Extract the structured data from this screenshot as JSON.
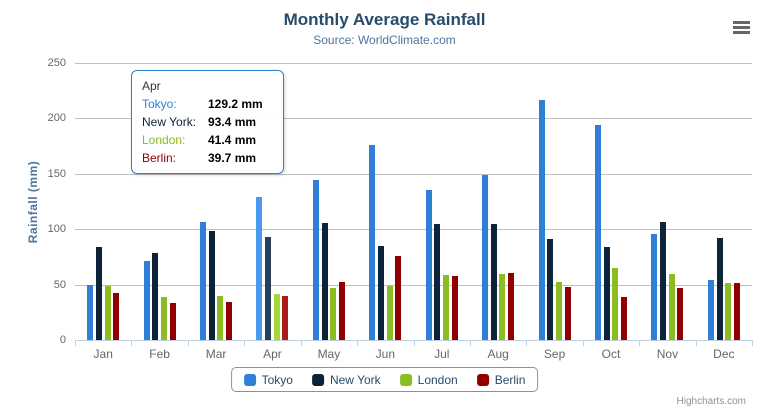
{
  "chart_data": {
    "type": "bar",
    "title": "Monthly Average Rainfall",
    "subtitle": "Source: WorldClimate.com",
    "xlabel": "",
    "ylabel": "Rainfall (mm)",
    "ylim": [
      0,
      250
    ],
    "yticks": [
      0,
      50,
      100,
      150,
      200,
      250
    ],
    "grid": true,
    "legend_position": "bottom",
    "categories": [
      "Jan",
      "Feb",
      "Mar",
      "Apr",
      "May",
      "Jun",
      "Jul",
      "Aug",
      "Sep",
      "Oct",
      "Nov",
      "Dec"
    ],
    "series": [
      {
        "name": "Tokyo",
        "color": "#2f7ed8",
        "hover_color": "#4a9af2",
        "values": [
          49.9,
          71.5,
          106.4,
          129.2,
          144.0,
          176.0,
          135.6,
          148.5,
          216.4,
          194.1,
          95.6,
          54.4
        ]
      },
      {
        "name": "New York",
        "color": "#0d233a",
        "hover_color": "#28405c",
        "values": [
          83.6,
          78.8,
          98.5,
          93.4,
          106.0,
          84.5,
          105.0,
          104.3,
          91.2,
          83.5,
          106.6,
          92.3
        ]
      },
      {
        "name": "London",
        "color": "#8bbc21",
        "hover_color": "#a4d739",
        "values": [
          48.9,
          38.8,
          39.3,
          41.4,
          47.0,
          48.3,
          59.0,
          59.6,
          52.4,
          65.2,
          59.3,
          51.2
        ]
      },
      {
        "name": "Berlin",
        "color": "#910000",
        "hover_color": "#ab1a1a",
        "values": [
          42.4,
          33.2,
          34.5,
          39.7,
          52.6,
          75.5,
          57.4,
          60.4,
          47.6,
          39.1,
          46.8,
          51.1
        ]
      }
    ],
    "hovered_category": "Apr"
  },
  "tooltip": {
    "header": "Apr",
    "rows": [
      {
        "label": "Tokyo:",
        "value": "129.2 mm",
        "color": "#2f7ed8"
      },
      {
        "label": "New York:",
        "value": "93.4 mm",
        "color": "#0d233a"
      },
      {
        "label": "London:",
        "value": "41.4 mm",
        "color": "#8bbc21"
      },
      {
        "label": "Berlin:",
        "value": "39.7 mm",
        "color": "#910000"
      }
    ]
  },
  "credit": "Highcharts.com",
  "colors": {
    "title": "#274b6d",
    "subtitle": "#4d759e",
    "axis_label": "#666666",
    "axis_title": "#4d759e",
    "grid": "#c0c0c0",
    "axis_line": "#c0d0e0",
    "legend_text": "#274b6d",
    "legend_border": "#909090",
    "tooltip_border": "#2f7ed8",
    "credit": "#909090"
  }
}
